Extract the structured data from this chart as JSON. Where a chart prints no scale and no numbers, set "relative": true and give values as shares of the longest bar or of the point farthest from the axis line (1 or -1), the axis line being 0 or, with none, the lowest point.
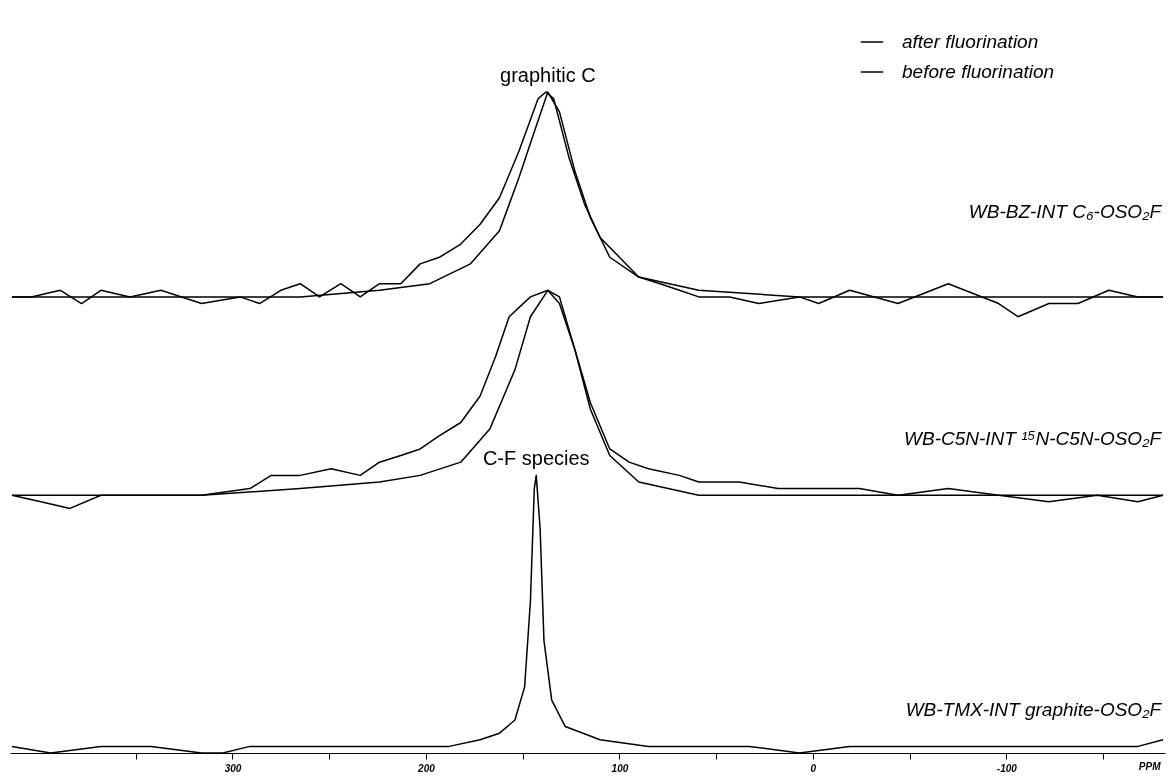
{
  "chart_data": {
    "type": "line",
    "relative": true,
    "xlabel": "PPM",
    "legend": "top right",
    "marker": "none",
    "line_style": "solid",
    "grid": false,
    "xlim": [
      415,
      -182
    ],
    "xticks": [
      {
        "value": 350,
        "label": null
      },
      300,
      {
        "value": 250,
        "label": null
      },
      200,
      {
        "value": 150,
        "label": null
      },
      100,
      {
        "value": 50,
        "label": null
      },
      0,
      {
        "value": -50,
        "label": null
      },
      -100,
      {
        "value": -150,
        "label": null
      }
    ],
    "series": [
      {
        "name": "after fluorination",
        "color": "#000000",
        "x": [
          414,
          404,
          389,
          378,
          368,
          353,
          337,
          316,
          296,
          286,
          275,
          265,
          255,
          244,
          234,
          224,
          213,
          203,
          193,
          182,
          172,
          162,
          152,
          142,
          138,
          134,
          126,
          118,
          110,
          100,
          90,
          79,
          69,
          59,
          43,
          28,
          7,
          -3,
          -19,
          -44,
          -70,
          -96,
          -106,
          -122,
          -137,
          -153,
          -168,
          -181
        ],
        "values": [
          0.69,
          0.69,
          0.7,
          0.68,
          0.7,
          0.69,
          0.7,
          0.68,
          0.69,
          0.68,
          0.7,
          0.71,
          0.69,
          0.71,
          0.69,
          0.71,
          0.71,
          0.74,
          0.75,
          0.77,
          0.8,
          0.84,
          0.91,
          0.99,
          1.0,
          0.99,
          0.9,
          0.83,
          0.78,
          0.75,
          0.72,
          0.71,
          0.7,
          0.69,
          0.69,
          0.68,
          0.69,
          0.68,
          0.7,
          0.68,
          0.71,
          0.68,
          0.66,
          0.68,
          0.68,
          0.7,
          0.69,
          0.69
        ]
      },
      {
        "name": "before fluorination",
        "color": "#000000",
        "x": [
          414,
          316,
          265,
          224,
          198,
          177,
          162,
          152,
          144,
          137,
          131,
          123,
          115,
          105,
          90,
          59,
          7,
          -96,
          -181
        ],
        "values": [
          0.69,
          0.69,
          0.69,
          0.7,
          0.71,
          0.74,
          0.79,
          0.87,
          0.94,
          1.0,
          0.97,
          0.88,
          0.81,
          0.75,
          0.72,
          0.7,
          0.69,
          0.69,
          0.69
        ]
      },
      {
        "color": "#000000",
        "x": [
          414,
          399,
          384,
          368,
          342,
          316,
          291,
          280,
          265,
          249,
          234,
          224,
          213,
          203,
          193,
          182,
          172,
          164,
          157,
          146,
          137,
          131,
          123,
          115,
          105,
          95,
          85,
          69,
          59,
          38,
          18,
          -3,
          -24,
          -44,
          -70,
          -96,
          -122,
          -147,
          -168,
          -181
        ],
        "values": [
          0.39,
          0.38,
          0.37,
          0.39,
          0.39,
          0.39,
          0.4,
          0.42,
          0.42,
          0.43,
          0.42,
          0.44,
          0.45,
          0.46,
          0.48,
          0.5,
          0.54,
          0.6,
          0.66,
          0.69,
          0.7,
          0.69,
          0.61,
          0.53,
          0.46,
          0.44,
          0.43,
          0.42,
          0.41,
          0.41,
          0.4,
          0.4,
          0.4,
          0.39,
          0.4,
          0.39,
          0.38,
          0.39,
          0.38,
          0.39
        ]
      },
      {
        "color": "#000000",
        "x": [
          414,
          368,
          316,
          265,
          224,
          203,
          182,
          167,
          154,
          146,
          137,
          131,
          123,
          115,
          105,
          90,
          59,
          7,
          -96,
          -181
        ],
        "values": [
          0.39,
          0.39,
          0.39,
          0.4,
          0.41,
          0.42,
          0.44,
          0.49,
          0.58,
          0.66,
          0.7,
          0.68,
          0.61,
          0.52,
          0.45,
          0.41,
          0.39,
          0.39,
          0.39,
          0.39
        ]
      },
      {
        "color": "#000000",
        "x": [
          414,
          394,
          368,
          342,
          316,
          305,
          291,
          265,
          239,
          213,
          188,
          172,
          162,
          154,
          149,
          146,
          144,
          143,
          141,
          139,
          135,
          128,
          110,
          85,
          59,
          33,
          7,
          -19,
          -44,
          -70,
          -96,
          -122,
          -147,
          -168,
          -181
        ],
        "values": [
          0.01,
          0.0,
          0.01,
          0.01,
          0.0,
          0.0,
          0.01,
          0.01,
          0.01,
          0.01,
          0.01,
          0.02,
          0.03,
          0.05,
          0.1,
          0.23,
          0.4,
          0.42,
          0.34,
          0.17,
          0.08,
          0.04,
          0.02,
          0.01,
          0.01,
          0.01,
          0.0,
          0.01,
          0.01,
          0.01,
          0.01,
          0.01,
          0.01,
          0.01,
          0.02
        ]
      }
    ],
    "annotations": [
      {
        "text": "graphitic C",
        "x": 137,
        "y": 1.0
      },
      {
        "text": "C-F species",
        "x": 143,
        "y": 0.42
      },
      "WB-BZ-INT C₆-OSO₂F",
      "WB-C5N-INT ¹⁵N-C5N-OSO₂F",
      "WB-TMX-INT graphite-OSO₂F"
    ]
  }
}
